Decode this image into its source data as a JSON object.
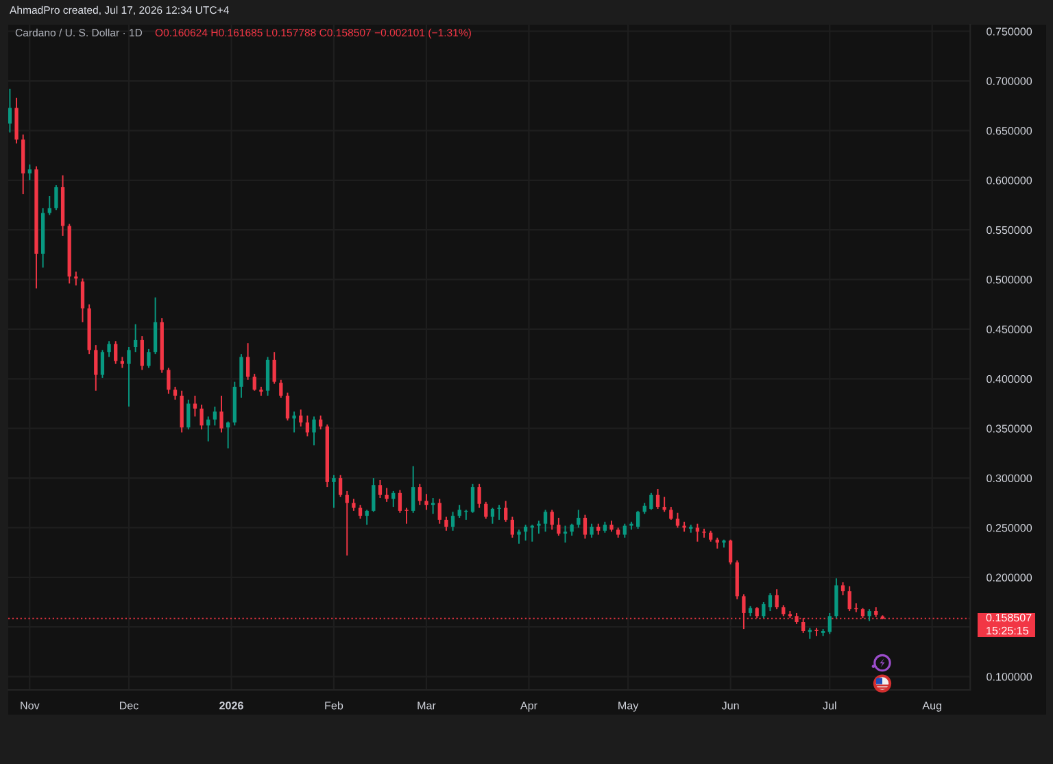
{
  "chart_data": {
    "type": "candlestick",
    "title": "Cardano / U. S. Dollar · 1D",
    "annotations": [
      "AhmadPro created, Jul 17, 2026 12:34 UTC+4",
      "O0.160624 H0.161685 L0.157788 C0.158507 −0.002101 (−1.31%)",
      "15:25:15"
    ],
    "x": [
      "2025-10-26",
      "2025-10-28",
      "2025-10-30",
      "2025-11-01",
      "2025-11-03",
      "2025-11-05",
      "2025-11-07",
      "2025-11-09",
      "2025-11-11",
      "2025-11-13",
      "2025-11-15",
      "2025-11-17",
      "2025-11-19",
      "2025-11-21",
      "2025-11-23",
      "2025-11-25",
      "2025-11-27",
      "2025-11-29",
      "2025-12-01",
      "2025-12-03",
      "2025-12-05",
      "2025-12-07",
      "2025-12-09",
      "2025-12-11",
      "2025-12-13",
      "2025-12-15",
      "2025-12-17",
      "2025-12-19",
      "2025-12-21",
      "2025-12-23",
      "2025-12-25",
      "2025-12-27",
      "2025-12-29",
      "2025-12-31",
      "2026-01-02",
      "2026-01-04",
      "2026-01-06",
      "2026-01-08",
      "2026-01-10",
      "2026-01-12",
      "2026-01-14",
      "2026-01-16",
      "2026-01-18",
      "2026-01-20",
      "2026-01-22",
      "2026-01-24",
      "2026-01-26",
      "2026-01-28",
      "2026-01-30",
      "2026-02-01",
      "2026-02-03",
      "2026-02-05",
      "2026-02-07",
      "2026-02-09",
      "2026-02-11",
      "2026-02-13",
      "2026-02-15",
      "2026-02-17",
      "2026-02-19",
      "2026-02-21",
      "2026-02-23",
      "2026-02-25",
      "2026-02-27",
      "2026-03-01",
      "2026-03-03",
      "2026-03-05",
      "2026-03-07",
      "2026-03-09",
      "2026-03-11",
      "2026-03-13",
      "2026-03-15",
      "2026-03-17",
      "2026-03-19",
      "2026-03-21",
      "2026-03-23",
      "2026-03-25",
      "2026-03-27",
      "2026-03-29",
      "2026-03-31",
      "2026-04-02",
      "2026-04-04",
      "2026-04-06",
      "2026-04-08",
      "2026-04-10",
      "2026-04-12",
      "2026-04-14",
      "2026-04-16",
      "2026-04-18",
      "2026-04-20",
      "2026-04-22",
      "2026-04-24",
      "2026-04-26",
      "2026-04-28",
      "2026-04-30",
      "2026-05-02",
      "2026-05-04",
      "2026-05-06",
      "2026-05-08",
      "2026-05-10",
      "2026-05-12",
      "2026-05-14",
      "2026-05-16",
      "2026-05-18",
      "2026-05-20",
      "2026-05-22",
      "2026-05-24",
      "2026-05-26",
      "2026-05-28",
      "2026-05-30",
      "2026-06-01",
      "2026-06-03",
      "2026-06-05",
      "2026-06-07",
      "2026-06-09",
      "2026-06-11",
      "2026-06-13",
      "2026-06-15",
      "2026-06-17",
      "2026-06-19",
      "2026-06-21",
      "2026-06-23",
      "2026-06-25",
      "2026-06-27",
      "2026-06-29",
      "2026-07-01",
      "2026-07-03",
      "2026-07-05",
      "2026-07-07",
      "2026-07-09",
      "2026-07-11",
      "2026-07-13",
      "2026-07-15",
      "2026-07-17"
    ],
    "ohlc": [
      [
        0.657,
        0.692,
        0.648,
        0.673
      ],
      [
        0.673,
        0.683,
        0.637,
        0.641
      ],
      [
        0.641,
        0.646,
        0.586,
        0.607
      ],
      [
        0.607,
        0.616,
        0.6,
        0.611
      ],
      [
        0.611,
        0.614,
        0.491,
        0.526
      ],
      [
        0.526,
        0.572,
        0.512,
        0.567
      ],
      [
        0.567,
        0.584,
        0.565,
        0.572
      ],
      [
        0.572,
        0.595,
        0.57,
        0.593
      ],
      [
        0.593,
        0.605,
        0.544,
        0.554
      ],
      [
        0.554,
        0.556,
        0.496,
        0.503
      ],
      [
        0.503,
        0.508,
        0.494,
        0.501
      ],
      [
        0.498,
        0.501,
        0.457,
        0.471
      ],
      [
        0.471,
        0.475,
        0.425,
        0.429
      ],
      [
        0.429,
        0.434,
        0.388,
        0.404
      ],
      [
        0.404,
        0.429,
        0.401,
        0.427
      ],
      [
        0.427,
        0.438,
        0.422,
        0.435
      ],
      [
        0.435,
        0.438,
        0.415,
        0.418
      ],
      [
        0.418,
        0.422,
        0.411,
        0.415
      ],
      [
        0.415,
        0.432,
        0.372,
        0.429
      ],
      [
        0.432,
        0.455,
        0.427,
        0.439
      ],
      [
        0.439,
        0.443,
        0.409,
        0.413
      ],
      [
        0.413,
        0.43,
        0.411,
        0.427
      ],
      [
        0.427,
        0.482,
        0.425,
        0.457
      ],
      [
        0.457,
        0.461,
        0.406,
        0.409
      ],
      [
        0.409,
        0.411,
        0.385,
        0.389
      ],
      [
        0.389,
        0.392,
        0.379,
        0.383
      ],
      [
        0.383,
        0.388,
        0.346,
        0.351
      ],
      [
        0.351,
        0.379,
        0.349,
        0.375
      ],
      [
        0.375,
        0.383,
        0.362,
        0.37
      ],
      [
        0.37,
        0.374,
        0.349,
        0.353
      ],
      [
        0.353,
        0.362,
        0.337,
        0.359
      ],
      [
        0.359,
        0.372,
        0.353,
        0.367
      ],
      [
        0.367,
        0.383,
        0.346,
        0.35
      ],
      [
        0.351,
        0.357,
        0.33,
        0.356
      ],
      [
        0.356,
        0.397,
        0.353,
        0.392
      ],
      [
        0.392,
        0.425,
        0.381,
        0.422
      ],
      [
        0.422,
        0.436,
        0.399,
        0.402
      ],
      [
        0.402,
        0.405,
        0.388,
        0.389
      ],
      [
        0.389,
        0.392,
        0.383,
        0.387
      ],
      [
        0.388,
        0.422,
        0.383,
        0.419
      ],
      [
        0.419,
        0.427,
        0.395,
        0.397
      ],
      [
        0.396,
        0.399,
        0.381,
        0.383
      ],
      [
        0.383,
        0.386,
        0.358,
        0.36
      ],
      [
        0.36,
        0.367,
        0.346,
        0.363
      ],
      [
        0.363,
        0.369,
        0.352,
        0.356
      ],
      [
        0.356,
        0.363,
        0.342,
        0.346
      ],
      [
        0.346,
        0.362,
        0.333,
        0.359
      ],
      [
        0.359,
        0.363,
        0.349,
        0.352
      ],
      [
        0.352,
        0.354,
        0.291,
        0.296
      ],
      [
        0.296,
        0.303,
        0.27,
        0.3
      ],
      [
        0.3,
        0.303,
        0.281,
        0.283
      ],
      [
        0.283,
        0.287,
        0.222,
        0.275
      ],
      [
        0.275,
        0.279,
        0.267,
        0.27
      ],
      [
        0.27,
        0.273,
        0.259,
        0.262
      ],
      [
        0.262,
        0.268,
        0.253,
        0.267
      ],
      [
        0.267,
        0.3,
        0.266,
        0.293
      ],
      [
        0.293,
        0.298,
        0.28,
        0.283
      ],
      [
        0.283,
        0.29,
        0.276,
        0.279
      ],
      [
        0.279,
        0.287,
        0.271,
        0.285
      ],
      [
        0.285,
        0.288,
        0.265,
        0.267
      ],
      [
        0.268,
        0.27,
        0.254,
        0.267
      ],
      [
        0.267,
        0.312,
        0.265,
        0.291
      ],
      [
        0.291,
        0.294,
        0.273,
        0.277
      ],
      [
        0.277,
        0.284,
        0.268,
        0.273
      ],
      [
        0.273,
        0.28,
        0.264,
        0.275
      ],
      [
        0.275,
        0.279,
        0.254,
        0.258
      ],
      [
        0.258,
        0.261,
        0.247,
        0.251
      ],
      [
        0.251,
        0.266,
        0.247,
        0.262
      ],
      [
        0.262,
        0.273,
        0.26,
        0.268
      ],
      [
        0.266,
        0.268,
        0.258,
        0.267
      ],
      [
        0.266,
        0.294,
        0.265,
        0.291
      ],
      [
        0.291,
        0.294,
        0.27,
        0.274
      ],
      [
        0.274,
        0.276,
        0.259,
        0.261
      ],
      [
        0.261,
        0.27,
        0.254,
        0.269
      ],
      [
        0.269,
        0.273,
        0.258,
        0.27
      ],
      [
        0.27,
        0.277,
        0.256,
        0.258
      ],
      [
        0.258,
        0.261,
        0.24,
        0.243
      ],
      [
        0.243,
        0.248,
        0.234,
        0.246
      ],
      [
        0.246,
        0.253,
        0.237,
        0.251
      ],
      [
        0.25,
        0.253,
        0.236,
        0.252
      ],
      [
        0.252,
        0.257,
        0.244,
        0.254
      ],
      [
        0.254,
        0.268,
        0.246,
        0.266
      ],
      [
        0.266,
        0.268,
        0.248,
        0.253
      ],
      [
        0.253,
        0.26,
        0.242,
        0.244
      ],
      [
        0.244,
        0.252,
        0.235,
        0.246
      ],
      [
        0.246,
        0.254,
        0.242,
        0.253
      ],
      [
        0.253,
        0.268,
        0.25,
        0.26
      ],
      [
        0.26,
        0.263,
        0.239,
        0.243
      ],
      [
        0.243,
        0.254,
        0.24,
        0.251
      ],
      [
        0.251,
        0.254,
        0.243,
        0.247
      ],
      [
        0.247,
        0.256,
        0.245,
        0.253
      ],
      [
        0.253,
        0.257,
        0.246,
        0.248
      ],
      [
        0.248,
        0.25,
        0.24,
        0.243
      ],
      [
        0.243,
        0.254,
        0.24,
        0.252
      ],
      [
        0.252,
        0.256,
        0.248,
        0.254
      ],
      [
        0.251,
        0.267,
        0.249,
        0.266
      ],
      [
        0.266,
        0.275,
        0.264,
        0.272
      ],
      [
        0.269,
        0.285,
        0.268,
        0.283
      ],
      [
        0.283,
        0.289,
        0.269,
        0.271
      ],
      [
        0.271,
        0.281,
        0.266,
        0.268
      ],
      [
        0.268,
        0.271,
        0.258,
        0.259
      ],
      [
        0.259,
        0.265,
        0.25,
        0.252
      ],
      [
        0.252,
        0.256,
        0.246,
        0.25
      ],
      [
        0.249,
        0.253,
        0.245,
        0.251
      ],
      [
        0.25,
        0.254,
        0.236,
        0.246
      ],
      [
        0.246,
        0.249,
        0.24,
        0.245
      ],
      [
        0.245,
        0.247,
        0.236,
        0.238
      ],
      [
        0.238,
        0.24,
        0.229,
        0.235
      ],
      [
        0.235,
        0.238,
        0.23,
        0.237
      ],
      [
        0.237,
        0.238,
        0.213,
        0.215
      ],
      [
        0.215,
        0.217,
        0.178,
        0.181
      ],
      [
        0.181,
        0.183,
        0.148,
        0.164
      ],
      [
        0.164,
        0.171,
        0.161,
        0.169
      ],
      [
        0.169,
        0.17,
        0.159,
        0.161
      ],
      [
        0.161,
        0.175,
        0.159,
        0.173
      ],
      [
        0.17,
        0.184,
        0.166,
        0.182
      ],
      [
        0.182,
        0.188,
        0.168,
        0.17
      ],
      [
        0.17,
        0.172,
        0.161,
        0.163
      ],
      [
        0.163,
        0.166,
        0.159,
        0.161
      ],
      [
        0.161,
        0.164,
        0.153,
        0.155
      ],
      [
        0.155,
        0.159,
        0.144,
        0.146
      ],
      [
        0.145,
        0.149,
        0.138,
        0.147
      ],
      [
        0.147,
        0.149,
        0.141,
        0.146
      ],
      [
        0.144,
        0.148,
        0.141,
        0.146
      ],
      [
        0.145,
        0.164,
        0.143,
        0.161
      ],
      [
        0.161,
        0.199,
        0.159,
        0.192
      ],
      [
        0.192,
        0.195,
        0.182,
        0.186
      ],
      [
        0.186,
        0.191,
        0.166,
        0.168
      ],
      [
        0.169,
        0.174,
        0.165,
        0.168
      ],
      [
        0.168,
        0.169,
        0.159,
        0.161
      ],
      [
        0.161,
        0.168,
        0.156,
        0.166
      ],
      [
        0.166,
        0.17,
        0.16,
        0.162
      ],
      [
        0.160624,
        0.161685,
        0.157788,
        0.158507
      ]
    ],
    "colors": [
      "#089981",
      "#f23645",
      "#f23645",
      "#089981",
      "#f23645",
      "#089981",
      "#089981",
      "#089981",
      "#f23645",
      "#f23645",
      "#f23645",
      "#f23645",
      "#f23645",
      "#f23645",
      "#089981",
      "#089981",
      "#f23645",
      "#f23645",
      "#089981",
      "#089981",
      "#f23645",
      "#089981",
      "#089981",
      "#f23645",
      "#f23645",
      "#f23645",
      "#f23645",
      "#089981",
      "#f23645",
      "#f23645",
      "#089981",
      "#089981",
      "#f23645",
      "#089981",
      "#089981",
      "#089981",
      "#f23645",
      "#f23645",
      "#f23645",
      "#089981",
      "#f23645",
      "#f23645",
      "#f23645",
      "#089981",
      "#f23645",
      "#f23645",
      "#089981",
      "#f23645",
      "#f23645",
      "#089981",
      "#f23645",
      "#f23645",
      "#f23645",
      "#f23645",
      "#089981",
      "#089981",
      "#f23645",
      "#f23645",
      "#089981",
      "#f23645",
      "#f23645",
      "#089981",
      "#f23645",
      "#f23645",
      "#089981",
      "#f23645",
      "#f23645",
      "#089981",
      "#089981",
      "#089981",
      "#089981",
      "#f23645",
      "#f23645",
      "#089981",
      "#089981",
      "#f23645",
      "#f23645",
      "#089981",
      "#089981",
      "#089981",
      "#089981",
      "#089981",
      "#f23645",
      "#f23645",
      "#089981",
      "#089981",
      "#089981",
      "#f23645",
      "#089981",
      "#f23645",
      "#089981",
      "#f23645",
      "#f23645",
      "#089981",
      "#089981",
      "#089981",
      "#089981",
      "#089981",
      "#f23645",
      "#f23645",
      "#f23645",
      "#f23645",
      "#f23645",
      "#089981",
      "#f23645",
      "#f23645",
      "#f23645",
      "#f23645",
      "#089981",
      "#f23645",
      "#f23645",
      "#f23645",
      "#089981",
      "#f23645",
      "#089981",
      "#089981",
      "#f23645",
      "#f23645",
      "#f23645",
      "#f23645",
      "#f23645",
      "#089981",
      "#f23645",
      "#089981",
      "#089981",
      "#089981",
      "#f23645",
      "#f23645",
      "#f23645",
      "#f23645",
      "#089981",
      "#f23645",
      "#f23645"
    ],
    "xlim": [
      "2025-10-25T12:00",
      "2026-08-12T12:00"
    ],
    "ylim": [
      0.0866,
      0.7567
    ],
    "xticks": [
      {
        "value": "2025-11-01",
        "label": "Nov"
      },
      {
        "value": "2025-12-01",
        "label": "Dec"
      },
      {
        "value": "2026-01-01",
        "label": "2026"
      },
      {
        "value": "2026-02-01",
        "label": "Feb"
      },
      {
        "value": "2026-03-01",
        "label": "Mar"
      },
      {
        "value": "2026-04-01",
        "label": "Apr"
      },
      {
        "value": "2026-05-01",
        "label": "May"
      },
      {
        "value": "2026-06-01",
        "label": "Jun"
      },
      {
        "value": "2026-07-01",
        "label": "Jul"
      },
      {
        "value": "2026-08-01",
        "label": "Aug"
      }
    ],
    "yticks": [
      {
        "value": 0.1,
        "label": "0.100000"
      },
      {
        "value": 0.15,
        "label": null
      },
      {
        "value": 0.2,
        "label": "0.200000"
      },
      {
        "value": 0.25,
        "label": "0.250000"
      },
      {
        "value": 0.3,
        "label": "0.300000"
      },
      {
        "value": 0.35,
        "label": "0.350000"
      },
      {
        "value": 0.4,
        "label": "0.400000"
      },
      {
        "value": 0.45,
        "label": "0.450000"
      },
      {
        "value": 0.5,
        "label": "0.500000"
      },
      {
        "value": 0.55,
        "label": "0.550000"
      },
      {
        "value": 0.6,
        "label": "0.600000"
      },
      {
        "value": 0.65,
        "label": "0.650000"
      },
      {
        "value": 0.7,
        "label": "0.700000"
      },
      {
        "value": 0.75,
        "label": "0.750000"
      }
    ],
    "grid": true,
    "ref_lines": [
      {
        "axis": "y",
        "value": 0.158507,
        "label": "0.158507",
        "color": "#f23645",
        "line_style": "dotted"
      }
    ]
  }
}
